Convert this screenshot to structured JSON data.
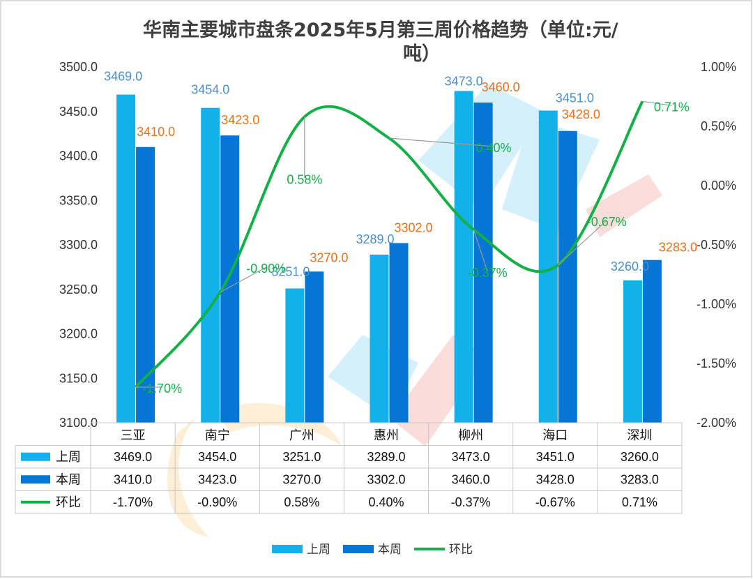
{
  "title_line1": "华南主要城市盘条2025年5月第三周价格趋势（单位:元/",
  "title_line2": "吨）",
  "colors": {
    "last_week": "#13b1ea",
    "this_week": "#0676d4",
    "wow": "#12b047",
    "label_last": "#4a8fd0",
    "label_this": "#ee7018",
    "label_wow": "#12b047"
  },
  "chart_data": {
    "type": "bar",
    "categories": [
      "三亚",
      "南宁",
      "广州",
      "惠州",
      "柳州",
      "海口",
      "深圳"
    ],
    "series": [
      {
        "name": "上周",
        "type": "bar",
        "axis": "left",
        "values": [
          3469.0,
          3454.0,
          3251.0,
          3289.0,
          3473.0,
          3451.0,
          3260.0
        ],
        "labels": [
          "3469.0",
          "3454.0",
          "3251.0",
          "3289.0",
          "3473.0",
          "3451.0",
          "3260.0"
        ]
      },
      {
        "name": "本周",
        "type": "bar",
        "axis": "left",
        "values": [
          3410.0,
          3423.0,
          3270.0,
          3302.0,
          3460.0,
          3428.0,
          3283.0
        ],
        "labels": [
          "3410.0",
          "3423.0",
          "3270.0",
          "3302.0",
          "3460.0",
          "3428.0",
          "3283.0"
        ]
      },
      {
        "name": "环比",
        "type": "line",
        "axis": "right",
        "values": [
          -1.7,
          -0.9,
          0.58,
          0.4,
          -0.37,
          -0.67,
          0.71
        ],
        "labels": [
          "-1.70%",
          "-0.90%",
          "0.58%",
          "0.40%",
          "-0.37%",
          "-0.67%",
          "0.71%"
        ]
      }
    ],
    "y_left": {
      "min": 3100,
      "max": 3500,
      "step": 50,
      "tick_labels": [
        "3100.0",
        "3150.0",
        "3200.0",
        "3250.0",
        "3300.0",
        "3350.0",
        "3400.0",
        "3450.0",
        "3500.0"
      ]
    },
    "y_right": {
      "min": -2.0,
      "max": 1.0,
      "step": 0.5,
      "tick_labels": [
        "-2.00%",
        "-1.50%",
        "-1.00%",
        "-0.50%",
        "0.00%",
        "0.50%",
        "1.00%"
      ]
    },
    "table": {
      "rows": [
        {
          "name": "上周",
          "cells": [
            "3469.0",
            "3454.0",
            "3251.0",
            "3289.0",
            "3473.0",
            "3451.0",
            "3260.0"
          ]
        },
        {
          "name": "本周",
          "cells": [
            "3410.0",
            "3423.0",
            "3270.0",
            "3302.0",
            "3460.0",
            "3428.0",
            "3283.0"
          ]
        },
        {
          "name": "环比",
          "cells": [
            "-1.70%",
            "-0.90%",
            "0.58%",
            "0.40%",
            "-0.37%",
            "-0.67%",
            "0.71%"
          ]
        }
      ]
    },
    "legend": [
      "上周",
      "本周",
      "环比"
    ],
    "legend_position": "bottom",
    "grid": false
  }
}
